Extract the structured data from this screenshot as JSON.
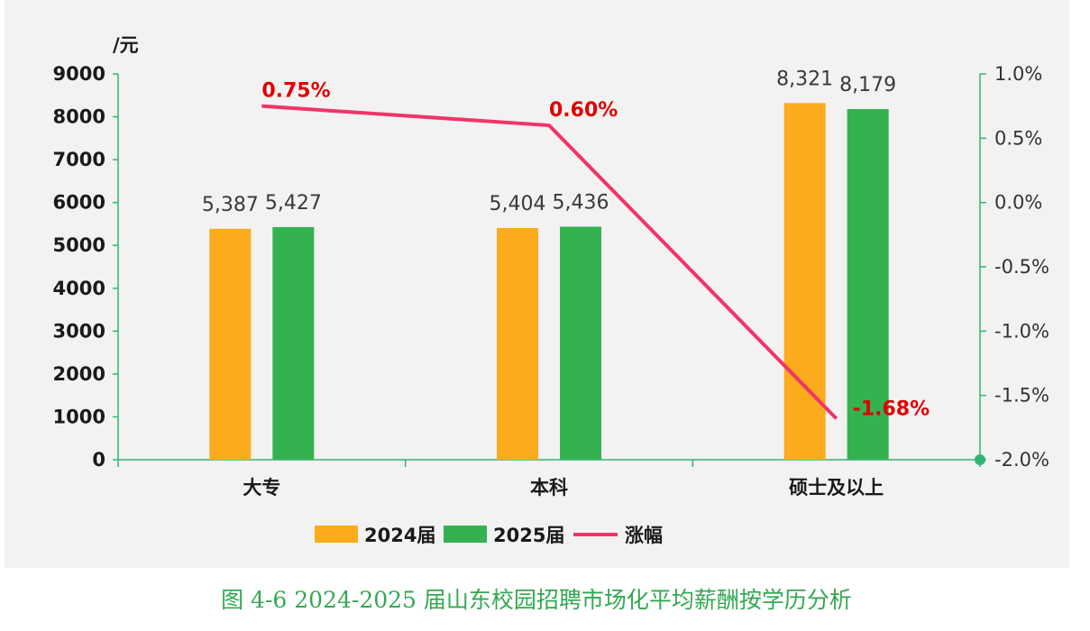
{
  "caption": "图 4-6 2024-2025 届山东校园招聘市场化平均薪酬按学历分析",
  "colors": {
    "y2024": "#fcab1c",
    "y2025": "#33b24f",
    "change": "#f0346a",
    "axis": "#33b56f",
    "label_red": "#e00000"
  },
  "chart_data": {
    "type": "bar",
    "categories": [
      "大专",
      "本科",
      "硕士及以上"
    ],
    "series": [
      {
        "name": "2024届",
        "values": [
          5387,
          5404,
          8321
        ],
        "labels": [
          "5,387",
          "5,404",
          "8,321"
        ]
      },
      {
        "name": "2025届",
        "values": [
          5427,
          5436,
          8179
        ],
        "labels": [
          "5,427",
          "5,436",
          "8,179"
        ]
      }
    ],
    "line_series": {
      "name": "涨幅",
      "values": [
        0.75,
        0.6,
        -1.68
      ],
      "labels": [
        "0.75%",
        "0.60%",
        "-1.68%"
      ],
      "axis": "right"
    },
    "ylabel": "/元",
    "ylim": [
      0,
      9000
    ],
    "yticks": [
      "0",
      "1000",
      "2000",
      "3000",
      "4000",
      "5000",
      "6000",
      "7000",
      "8000",
      "9000"
    ],
    "y2lim": [
      -2.0,
      1.0
    ],
    "y2ticks": [
      "-2.0%",
      "-1.5%",
      "-1.0%",
      "-0.5%",
      "0.0%",
      "0.5%",
      "1.0%"
    ],
    "legend_position": "bottom",
    "grid": false
  }
}
